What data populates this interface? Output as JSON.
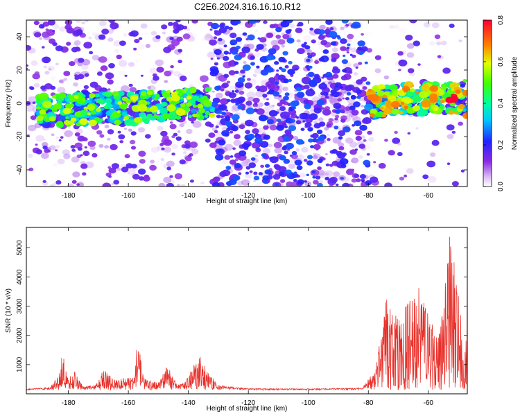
{
  "title": "C2E6.2024.316.16.10.R12",
  "chart_data": [
    {
      "type": "heatmap",
      "xlabel": "Height of straight line (km)",
      "ylabel": "Frequency (Hz)",
      "xlim": [
        -194,
        -47
      ],
      "ylim": [
        -50,
        50
      ],
      "xticks": [
        -180,
        -160,
        -140,
        -120,
        -100,
        -80,
        -60
      ],
      "yticks": [
        -40,
        -20,
        0,
        20,
        40
      ],
      "grid": false,
      "colorbar": {
        "label": "Normalized spectral amplitude",
        "range": [
          0,
          0.8
        ],
        "ticks": [
          0,
          0.2,
          0.4,
          0.6,
          0.8
        ],
        "colormap": "white-violet-blue-cyan-green-yellow-red"
      },
      "signal_band": {
        "freq_center": [
          [
            -194,
            -5
          ],
          [
            -180,
            -4
          ],
          [
            -170,
            -3
          ],
          [
            -160,
            -3
          ],
          [
            -150,
            -2
          ],
          [
            -140,
            0
          ],
          [
            -132,
            0
          ],
          [
            -80,
            0
          ],
          [
            -70,
            2
          ],
          [
            -60,
            3
          ],
          [
            -50,
            3
          ]
        ],
        "strong_segments": [
          [
            -190,
            -132
          ],
          [
            -80,
            -48
          ]
        ],
        "peak_amplitude": 0.8,
        "peak_near_km": -52
      },
      "noise_region_km": [
        -132,
        -80
      ]
    },
    {
      "type": "line",
      "xlabel": "Height of straight line (km)",
      "ylabel": "SNR (10 * v/v)",
      "xlim": [
        -194,
        -47
      ],
      "ylim": [
        0,
        5700
      ],
      "xticks": [
        -180,
        -160,
        -140,
        -120,
        -100,
        -80,
        -60
      ],
      "yticks": [
        1000,
        2000,
        3000,
        4000,
        5000
      ],
      "grid": false,
      "color": "#e8302a",
      "series_envelope": [
        {
          "x": -194,
          "y": 150
        },
        {
          "x": -186,
          "y": 250
        },
        {
          "x": -183,
          "y": 700
        },
        {
          "x": -182,
          "y": 1550
        },
        {
          "x": -180,
          "y": 500
        },
        {
          "x": -178,
          "y": 800
        },
        {
          "x": -175,
          "y": 250
        },
        {
          "x": -171,
          "y": 300
        },
        {
          "x": -168,
          "y": 900
        },
        {
          "x": -165,
          "y": 500
        },
        {
          "x": -158,
          "y": 600
        },
        {
          "x": -157,
          "y": 2150
        },
        {
          "x": -155,
          "y": 550
        },
        {
          "x": -150,
          "y": 400
        },
        {
          "x": -147,
          "y": 1000
        },
        {
          "x": -144,
          "y": 350
        },
        {
          "x": -141,
          "y": 400
        },
        {
          "x": -139,
          "y": 900
        },
        {
          "x": -136,
          "y": 1300
        },
        {
          "x": -133,
          "y": 700
        },
        {
          "x": -130,
          "y": 300
        },
        {
          "x": -120,
          "y": 180
        },
        {
          "x": -100,
          "y": 170
        },
        {
          "x": -82,
          "y": 200
        },
        {
          "x": -78,
          "y": 800
        },
        {
          "x": -75,
          "y": 2500
        },
        {
          "x": -74,
          "y": 3400
        },
        {
          "x": -70,
          "y": 2700
        },
        {
          "x": -66,
          "y": 3300
        },
        {
          "x": -63,
          "y": 3700
        },
        {
          "x": -60,
          "y": 2800
        },
        {
          "x": -57,
          "y": 2000
        },
        {
          "x": -55,
          "y": 3000
        },
        {
          "x": -54,
          "y": 4500
        },
        {
          "x": -53,
          "y": 5700
        },
        {
          "x": -51,
          "y": 4600
        },
        {
          "x": -49,
          "y": 2500
        },
        {
          "x": -48,
          "y": 500
        },
        {
          "x": -47,
          "y": 4800
        }
      ]
    }
  ]
}
